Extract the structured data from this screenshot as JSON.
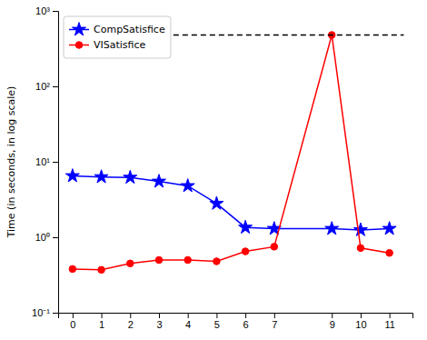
{
  "chart_data": {
    "type": "line",
    "log": "y",
    "y_label": "Time (in seconds, in log scale)",
    "x": [
      0,
      1,
      2,
      3,
      4,
      5,
      6,
      7,
      9,
      10,
      11
    ],
    "series": [
      {
        "name": "CompSatisfice",
        "color": "#0000ff",
        "marker": "star",
        "line_style": "solid",
        "values": [
          6.5,
          6.3,
          6.2,
          5.5,
          4.8,
          2.8,
          1.35,
          1.3,
          1.3,
          1.25,
          1.3
        ]
      },
      {
        "name": "VISatisfice",
        "color": "#ff0000",
        "marker": "circle",
        "line_style": "solid",
        "values": [
          0.38,
          0.37,
          0.45,
          0.5,
          0.5,
          0.48,
          0.65,
          0.75,
          480,
          0.72,
          0.62
        ]
      },
      {
        "color": "#000000",
        "line_style": "dashed",
        "x": [
          3.5,
          11.5
        ],
        "values": [
          480,
          480
        ]
      }
    ],
    "xlim": [
      -0.5,
      11.8
    ],
    "xticks": [
      0,
      1,
      2,
      3,
      4,
      5,
      6,
      7,
      9,
      10,
      11
    ],
    "ylim": [
      0.1,
      1000
    ],
    "yticks": [
      {
        "value": 0.1,
        "label": "10⁻¹"
      },
      {
        "value": 1,
        "label": "10⁰"
      },
      {
        "value": 10,
        "label": "10¹"
      },
      {
        "value": 100,
        "label": "10²"
      },
      {
        "value": 1000,
        "label": "10³"
      }
    ],
    "grid": false,
    "legend": "upper left"
  }
}
